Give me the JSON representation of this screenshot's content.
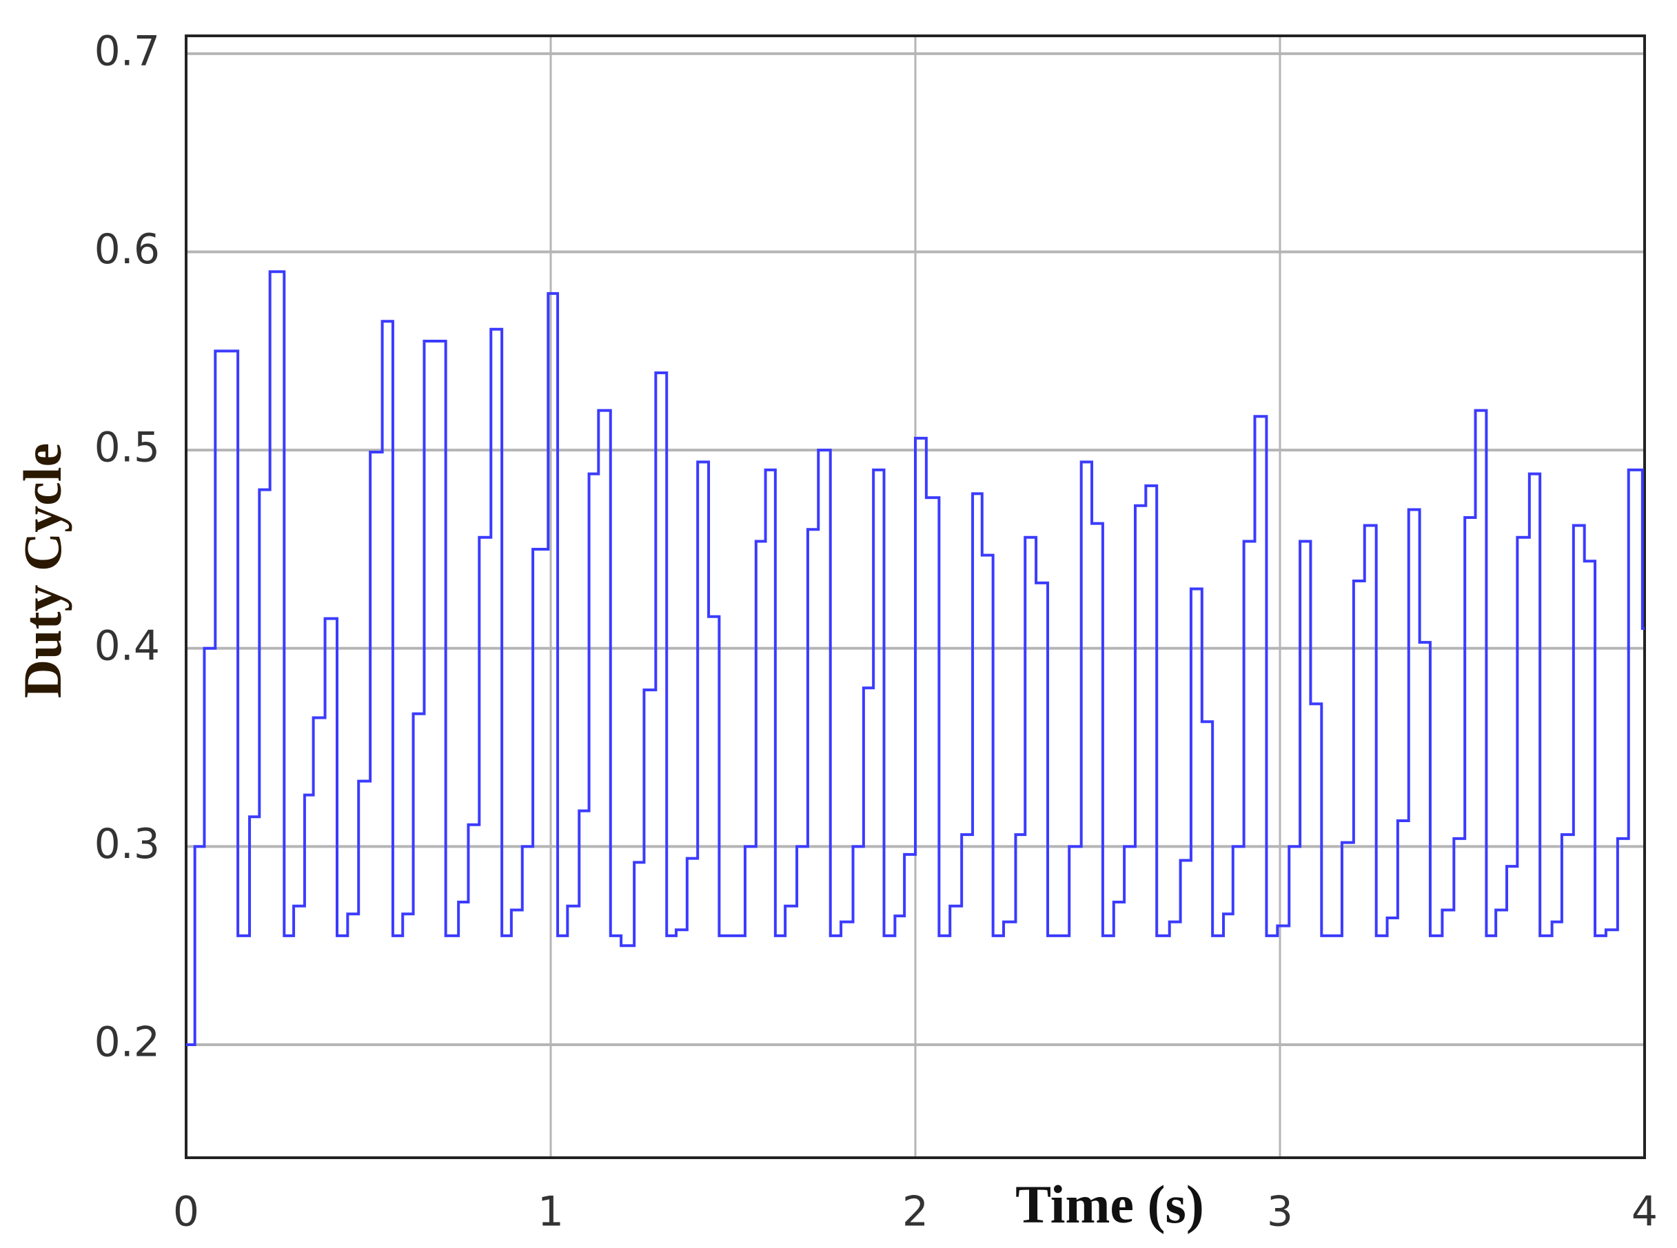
{
  "chart_data": {
    "type": "line",
    "step": "post",
    "xlabel": "Time (s)",
    "ylabel": "Duty Cycle",
    "color": "#3b3bff",
    "x": [
      0,
      0.024,
      0.05,
      0.08,
      0.142,
      0.174,
      0.201,
      0.23,
      0.269,
      0.295,
      0.325,
      0.349,
      0.381,
      0.414,
      0.443,
      0.473,
      0.505,
      0.538,
      0.567,
      0.594,
      0.623,
      0.653,
      0.712,
      0.747,
      0.774,
      0.804,
      0.836,
      0.866,
      0.892,
      0.922,
      0.951,
      0.993,
      1.019,
      1.046,
      1.078,
      1.105,
      1.131,
      1.164,
      1.193,
      1.229,
      1.256,
      1.288,
      1.318,
      1.344,
      1.374,
      1.403,
      1.433,
      1.462,
      1.533,
      1.563,
      1.589,
      1.616,
      1.643,
      1.675,
      1.705,
      1.734,
      1.767,
      1.796,
      1.829,
      1.858,
      1.885,
      1.914,
      1.944,
      1.97,
      2.0,
      2.03,
      2.065,
      2.095,
      2.127,
      2.157,
      2.183,
      2.213,
      2.242,
      2.275,
      2.301,
      2.331,
      2.363,
      2.422,
      2.455,
      2.484,
      2.514,
      2.544,
      2.573,
      2.603,
      2.632,
      2.662,
      2.697,
      2.727,
      2.756,
      2.786,
      2.815,
      2.845,
      2.871,
      2.901,
      2.931,
      2.963,
      2.993,
      3.025,
      3.055,
      3.084,
      3.114,
      3.17,
      3.202,
      3.232,
      3.264,
      3.294,
      3.323,
      3.353,
      3.383,
      3.412,
      3.445,
      3.477,
      3.507,
      3.536,
      3.566,
      3.592,
      3.622,
      3.651,
      3.684,
      3.713,
      3.746,
      3.773,
      3.805,
      3.835,
      3.864,
      3.894,
      3.926,
      3.956,
      3.994
    ],
    "values": [
      0.2,
      0.3,
      0.4,
      0.55,
      0.255,
      0.315,
      0.48,
      0.59,
      0.255,
      0.27,
      0.326,
      0.365,
      0.415,
      0.255,
      0.266,
      0.333,
      0.499,
      0.565,
      0.255,
      0.266,
      0.367,
      0.555,
      0.255,
      0.272,
      0.311,
      0.456,
      0.561,
      0.255,
      0.268,
      0.3,
      0.45,
      0.579,
      0.255,
      0.27,
      0.318,
      0.488,
      0.52,
      0.255,
      0.25,
      0.292,
      0.379,
      0.539,
      0.255,
      0.258,
      0.294,
      0.494,
      0.416,
      0.255,
      0.3,
      0.454,
      0.49,
      0.255,
      0.27,
      0.3,
      0.46,
      0.5,
      0.255,
      0.262,
      0.3,
      0.38,
      0.49,
      0.255,
      0.265,
      0.296,
      0.506,
      0.476,
      0.255,
      0.27,
      0.306,
      0.478,
      0.447,
      0.255,
      0.262,
      0.306,
      0.456,
      0.433,
      0.255,
      0.3,
      0.494,
      0.463,
      0.255,
      0.272,
      0.3,
      0.472,
      0.482,
      0.255,
      0.262,
      0.293,
      0.43,
      0.363,
      0.255,
      0.266,
      0.3,
      0.454,
      0.517,
      0.255,
      0.26,
      0.3,
      0.454,
      0.372,
      0.255,
      0.302,
      0.434,
      0.462,
      0.255,
      0.264,
      0.313,
      0.47,
      0.403,
      0.255,
      0.268,
      0.304,
      0.466,
      0.52,
      0.255,
      0.268,
      0.29,
      0.456,
      0.488,
      0.255,
      0.262,
      0.306,
      0.462,
      0.444,
      0.255,
      0.258,
      0.304,
      0.49,
      0.41
    ],
    "xlim": [
      0,
      4
    ],
    "xticks": [
      0,
      1,
      2,
      3,
      4
    ],
    "ylim": [
      0.143,
      0.709
    ],
    "yticks": [
      0.2,
      0.3,
      0.4,
      0.5,
      0.6,
      0.7
    ],
    "grid": true
  }
}
